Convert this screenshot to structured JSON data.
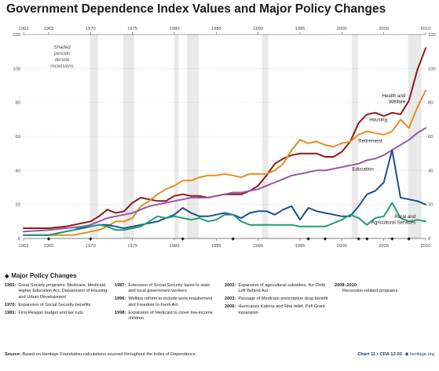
{
  "chart_data": {
    "type": "line",
    "title": "Government Dependence Index Values and Major Policy Changes",
    "xlim": [
      1962,
      2010
    ],
    "ylim": [
      0,
      120
    ],
    "x_ticks": [
      "1962",
      "1965",
      "1970",
      "1975",
      "1980",
      "1985",
      "1990",
      "1995",
      "2000",
      "2005",
      "2010"
    ],
    "y_ticks": [
      "0",
      "20",
      "40",
      "60",
      "80",
      "100",
      "120"
    ],
    "recession_note": "Shaded periods denote recessions",
    "recessions": [
      [
        1969.9,
        1970.9
      ],
      [
        1973.9,
        1975.2
      ],
      [
        1980,
        1980.5
      ],
      [
        1981.5,
        1982.9
      ],
      [
        1990.5,
        1991.2
      ],
      [
        2001.2,
        2001.9
      ],
      [
        2007.9,
        2009.5
      ]
    ],
    "policy_marker_years": [
      1965,
      1970,
      1981,
      1987,
      1996,
      1998,
      2002,
      2003,
      2006,
      2008
    ],
    "series": [
      {
        "name": "Health and Welfare",
        "color": "#8b1a1a",
        "points": [
          [
            1962,
            6
          ],
          [
            1965,
            6
          ],
          [
            1967,
            7
          ],
          [
            1969,
            9
          ],
          [
            1970,
            10
          ],
          [
            1971,
            13
          ],
          [
            1972,
            17
          ],
          [
            1973,
            15
          ],
          [
            1974,
            16
          ],
          [
            1975,
            21
          ],
          [
            1976,
            24
          ],
          [
            1977,
            23
          ],
          [
            1978,
            22
          ],
          [
            1979,
            22
          ],
          [
            1980,
            25
          ],
          [
            1981,
            26
          ],
          [
            1982,
            25
          ],
          [
            1983,
            25
          ],
          [
            1984,
            24
          ],
          [
            1985,
            25
          ],
          [
            1986,
            26
          ],
          [
            1987,
            26
          ],
          [
            1988,
            26
          ],
          [
            1989,
            28
          ],
          [
            1990,
            31
          ],
          [
            1991,
            37
          ],
          [
            1992,
            44
          ],
          [
            1993,
            47
          ],
          [
            1994,
            49
          ],
          [
            1995,
            50
          ],
          [
            1996,
            50
          ],
          [
            1997,
            50
          ],
          [
            1998,
            48
          ],
          [
            1999,
            48
          ],
          [
            2000,
            51
          ],
          [
            2001,
            57
          ],
          [
            2002,
            68
          ],
          [
            2003,
            73
          ],
          [
            2004,
            74
          ],
          [
            2005,
            72
          ],
          [
            2006,
            74
          ],
          [
            2007,
            73
          ],
          [
            2008,
            81
          ],
          [
            2009,
            99
          ],
          [
            2010,
            112
          ]
        ]
      },
      {
        "name": "Housing",
        "color": "#e58d1f",
        "points": [
          [
            1962,
            2
          ],
          [
            1965,
            2
          ],
          [
            1968,
            2
          ],
          [
            1969,
            3
          ],
          [
            1970,
            4
          ],
          [
            1971,
            5
          ],
          [
            1972,
            7
          ],
          [
            1973,
            10
          ],
          [
            1974,
            10
          ],
          [
            1975,
            12
          ],
          [
            1976,
            19
          ],
          [
            1977,
            22
          ],
          [
            1978,
            26
          ],
          [
            1979,
            29
          ],
          [
            1980,
            31
          ],
          [
            1981,
            34
          ],
          [
            1982,
            34
          ],
          [
            1983,
            36
          ],
          [
            1984,
            37
          ],
          [
            1985,
            37
          ],
          [
            1986,
            38
          ],
          [
            1987,
            37
          ],
          [
            1988,
            36
          ],
          [
            1989,
            38
          ],
          [
            1990,
            38
          ],
          [
            1991,
            38
          ],
          [
            1992,
            40
          ],
          [
            1993,
            44
          ],
          [
            1994,
            52
          ],
          [
            1995,
            58
          ],
          [
            1996,
            56
          ],
          [
            1997,
            57
          ],
          [
            1998,
            55
          ],
          [
            1999,
            54
          ],
          [
            2000,
            56
          ],
          [
            2001,
            57
          ],
          [
            2002,
            61
          ],
          [
            2003,
            63
          ],
          [
            2004,
            62
          ],
          [
            2005,
            61
          ],
          [
            2006,
            63
          ],
          [
            2007,
            70
          ],
          [
            2008,
            65
          ],
          [
            2009,
            77
          ],
          [
            2010,
            87
          ]
        ]
      },
      {
        "name": "Retirement",
        "color": "#9b55a8",
        "points": [
          [
            1962,
            4
          ],
          [
            1965,
            5
          ],
          [
            1967,
            6
          ],
          [
            1969,
            7
          ],
          [
            1970,
            8
          ],
          [
            1971,
            10
          ],
          [
            1972,
            12
          ],
          [
            1973,
            13
          ],
          [
            1974,
            14
          ],
          [
            1975,
            15
          ],
          [
            1976,
            17
          ],
          [
            1977,
            19
          ],
          [
            1978,
            20
          ],
          [
            1979,
            21
          ],
          [
            1980,
            22
          ],
          [
            1981,
            23
          ],
          [
            1982,
            24
          ],
          [
            1983,
            24
          ],
          [
            1984,
            24
          ],
          [
            1985,
            25
          ],
          [
            1986,
            26
          ],
          [
            1987,
            27
          ],
          [
            1988,
            27
          ],
          [
            1989,
            28
          ],
          [
            1990,
            29
          ],
          [
            1991,
            31
          ],
          [
            1992,
            33
          ],
          [
            1993,
            35
          ],
          [
            1994,
            37
          ],
          [
            1995,
            38
          ],
          [
            1996,
            39
          ],
          [
            1997,
            40
          ],
          [
            1998,
            40
          ],
          [
            1999,
            41
          ],
          [
            2000,
            42
          ],
          [
            2001,
            43
          ],
          [
            2002,
            44
          ],
          [
            2003,
            46
          ],
          [
            2004,
            47
          ],
          [
            2005,
            49
          ],
          [
            2006,
            52
          ],
          [
            2007,
            55
          ],
          [
            2008,
            58
          ],
          [
            2009,
            62
          ],
          [
            2010,
            65
          ]
        ]
      },
      {
        "name": "Education",
        "color": "#1e4d8c",
        "points": [
          [
            1962,
            2
          ],
          [
            1965,
            2
          ],
          [
            1966,
            3
          ],
          [
            1967,
            4
          ],
          [
            1968,
            5
          ],
          [
            1969,
            6
          ],
          [
            1970,
            7
          ],
          [
            1971,
            8
          ],
          [
            1972,
            8
          ],
          [
            1973,
            7
          ],
          [
            1974,
            6
          ],
          [
            1975,
            7
          ],
          [
            1976,
            8
          ],
          [
            1977,
            9
          ],
          [
            1978,
            10
          ],
          [
            1979,
            12
          ],
          [
            1980,
            14
          ],
          [
            1981,
            18
          ],
          [
            1982,
            15
          ],
          [
            1983,
            13
          ],
          [
            1984,
            13
          ],
          [
            1985,
            14
          ],
          [
            1986,
            15
          ],
          [
            1987,
            14
          ],
          [
            1988,
            12
          ],
          [
            1989,
            15
          ],
          [
            1990,
            16
          ],
          [
            1991,
            16
          ],
          [
            1992,
            14
          ],
          [
            1993,
            17
          ],
          [
            1994,
            19
          ],
          [
            1995,
            11
          ],
          [
            1996,
            18
          ],
          [
            1997,
            16
          ],
          [
            1998,
            15
          ],
          [
            1999,
            14
          ],
          [
            2000,
            13
          ],
          [
            2001,
            13
          ],
          [
            2002,
            19
          ],
          [
            2003,
            26
          ],
          [
            2004,
            28
          ],
          [
            2005,
            33
          ],
          [
            2006,
            52
          ],
          [
            2007,
            24
          ],
          [
            2008,
            23
          ],
          [
            2009,
            22
          ],
          [
            2010,
            20
          ]
        ]
      },
      {
        "name": "Rural and Agricultural Services",
        "color": "#1e9e78",
        "points": [
          [
            1962,
            2
          ],
          [
            1965,
            2
          ],
          [
            1967,
            4
          ],
          [
            1968,
            5
          ],
          [
            1969,
            7
          ],
          [
            1970,
            7
          ],
          [
            1971,
            8
          ],
          [
            1972,
            7
          ],
          [
            1973,
            5
          ],
          [
            1974,
            5
          ],
          [
            1975,
            6
          ],
          [
            1976,
            7
          ],
          [
            1977,
            10
          ],
          [
            1978,
            13
          ],
          [
            1979,
            12
          ],
          [
            1980,
            13
          ],
          [
            1981,
            12
          ],
          [
            1982,
            11
          ],
          [
            1983,
            12
          ],
          [
            1984,
            10
          ],
          [
            1985,
            11
          ],
          [
            1986,
            14
          ],
          [
            1987,
            14
          ],
          [
            1988,
            10
          ],
          [
            1989,
            8
          ],
          [
            1990,
            8
          ],
          [
            1991,
            8
          ],
          [
            1992,
            8
          ],
          [
            1993,
            8
          ],
          [
            1994,
            8
          ],
          [
            1995,
            7
          ],
          [
            1996,
            7
          ],
          [
            1997,
            7
          ],
          [
            1998,
            7
          ],
          [
            1999,
            9
          ],
          [
            2000,
            11
          ],
          [
            2001,
            14
          ],
          [
            2002,
            12
          ],
          [
            2003,
            8
          ],
          [
            2004,
            12
          ],
          [
            2005,
            13
          ],
          [
            2006,
            21
          ],
          [
            2007,
            12
          ],
          [
            2008,
            10
          ],
          [
            2009,
            11
          ],
          [
            2010,
            10
          ]
        ]
      }
    ]
  },
  "policy_header": "Major Policy Changes",
  "policies": [
    [
      {
        "year": "1965:",
        "text": "Great Society programs: Medicare, Medicaid, Higher Education Act, Department of Housing and Urban Development"
      },
      {
        "year": "1970:",
        "text": "Expansion of Social Security benefits"
      },
      {
        "year": "1981:",
        "text": "First Reagan budget and tax cuts"
      }
    ],
    [
      {
        "year": "1987:",
        "text": "Extension of Social Security taxes to state and local government workers"
      },
      {
        "year": "1996:",
        "text": "Welfare reform to include work requirement and Freedom to Farm Act"
      },
      {
        "year": "1998:",
        "text": "Expansion of Medicaid to cover low-income children"
      }
    ],
    [
      {
        "year": "2002:",
        "text": "Expansion of agricultural subsidies, No Child Left Behind Act"
      },
      {
        "year": "2003:",
        "text": "Passage of Medicare prescription drug benefit"
      },
      {
        "year": "2006:",
        "text": "Hurricanes Katrina and Rita relief, Pell Grant expansion"
      }
    ],
    [
      {
        "year": "2008–2010:",
        "text": "Recession-related programs"
      }
    ]
  ],
  "source_label": "Source:",
  "source_text": "Based on Heritage Foundation calculations sourced throughout the Index of Dependence.",
  "chart_id": "Chart 11 • CDA 12-02",
  "site": "heritage.org",
  "colors": {
    "grid": "#bdbdbd",
    "recession": "#e9e9e9",
    "text": "#1a1a1a",
    "accent": "#1a3d73"
  }
}
